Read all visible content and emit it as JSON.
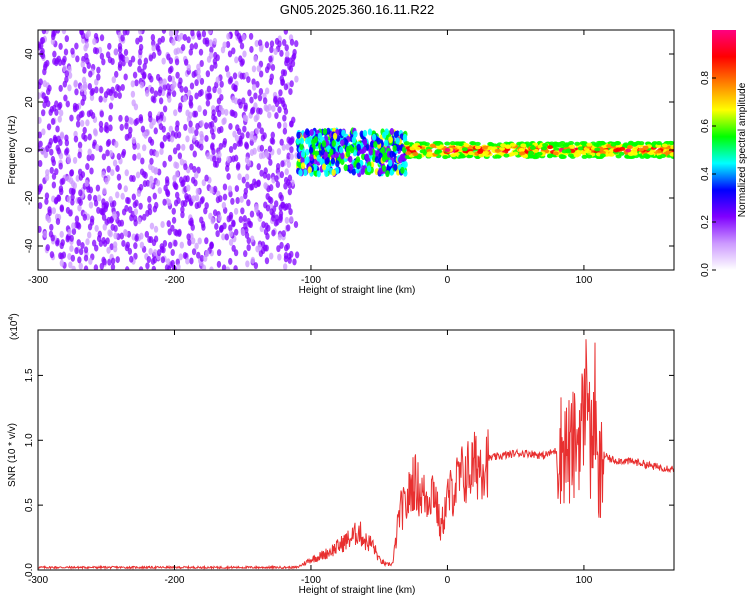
{
  "title": "GN05.2025.360.16.11.R22",
  "chart_data": [
    {
      "type": "heatmap",
      "xlabel": "Height of straight line (km)",
      "ylabel": "Frequency (Hz)",
      "xlim": [
        -300,
        166
      ],
      "ylim": [
        -50,
        50
      ],
      "xticks": [
        -300,
        -200,
        -100,
        0,
        100
      ],
      "yticks": [
        -40,
        -20,
        0,
        20,
        40
      ],
      "colorbar": {
        "label": "Normalized spectral amplitude",
        "range": [
          0,
          1
        ],
        "ticks": [
          "0.0",
          "0.2",
          "0.4",
          "0.6",
          "0.8"
        ],
        "colors": [
          "#ffffff",
          "#cc99ff",
          "#8000ff",
          "#0000ff",
          "#00ffff",
          "#00ff00",
          "#ffff00",
          "#ff8000",
          "#ff0000",
          "#ff0080"
        ]
      },
      "regions": [
        {
          "x": [
            -300,
            -110
          ],
          "freq": [
            -50,
            50
          ],
          "amplitude": 0.12
        },
        {
          "x": [
            -110,
            -30
          ],
          "freq": [
            -10,
            8
          ],
          "amplitude": 0.35
        },
        {
          "x": [
            -30,
            166
          ],
          "freq": [
            -3,
            3
          ],
          "amplitude": 0.85
        }
      ]
    },
    {
      "type": "line",
      "xlabel": "Height of straight line (km)",
      "ylabel": "SNR (10 * v/v)",
      "yscale_label": "(x10",
      "yscale_exp": "4",
      "yscale_close": ")",
      "xlim": [
        -300,
        166
      ],
      "ylim": [
        0,
        1.85
      ],
      "xticks": [
        -300,
        -200,
        -100,
        0,
        100
      ],
      "yticks": [
        "0.0",
        "0.5",
        "1.0",
        "1.5"
      ],
      "series": [
        {
          "color": "#e83030",
          "x": [
            -300,
            -110,
            -100,
            -90,
            -80,
            -75,
            -70,
            -65,
            -60,
            -55,
            -50,
            -45,
            -40,
            -35,
            -30,
            -25,
            -20,
            -15,
            -10,
            -5,
            0,
            10,
            20,
            30,
            40,
            50,
            60,
            70,
            80,
            85,
            90,
            95,
            100,
            103,
            105,
            108,
            110,
            115,
            120,
            130,
            140,
            150,
            166
          ],
          "y": [
            0.02,
            0.02,
            0.08,
            0.12,
            0.18,
            0.22,
            0.25,
            0.3,
            0.22,
            0.2,
            0.08,
            0.04,
            0.05,
            0.45,
            0.5,
            0.7,
            0.6,
            0.55,
            0.65,
            0.3,
            0.55,
            0.72,
            0.8,
            0.86,
            0.88,
            0.9,
            0.9,
            0.88,
            0.92,
            0.95,
            0.9,
            1.0,
            1.2,
            1.6,
            0.8,
            1.35,
            0.6,
            0.88,
            0.85,
            0.84,
            0.83,
            0.8,
            0.78
          ]
        }
      ]
    }
  ]
}
